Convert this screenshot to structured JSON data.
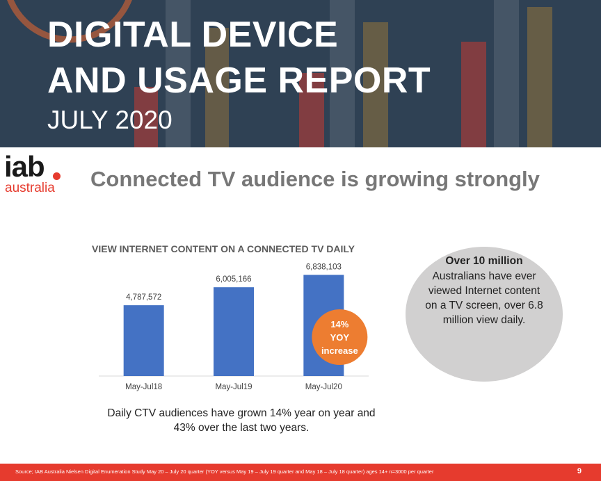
{
  "banner": {
    "title_line1": "DIGITAL DEVICE",
    "title_line2": "AND USAGE REPORT",
    "subtitle": "JULY 2020"
  },
  "logo": {
    "main": "iab",
    "sub": "australia"
  },
  "heading": "Connected TV audience is growing strongly",
  "chart_data": {
    "type": "bar",
    "title": "VIEW INTERNET CONTENT ON A CONNECTED TV DAILY",
    "categories": [
      "May-Jul18",
      "May-Jul19",
      "May-Jul20"
    ],
    "values": [
      4787572,
      6005166,
      6838103
    ],
    "data_labels": [
      "4,787,572",
      "6,005,166",
      "6,838,103"
    ],
    "ylim": [
      0,
      7800000
    ],
    "xlabel": "",
    "ylabel": "",
    "grid": false,
    "bar_color": "#4472c4",
    "annotation": {
      "lines": [
        "14%",
        "YOY",
        "increase"
      ],
      "color": "#ed7d31"
    }
  },
  "callout": {
    "headline": "Over 10 million",
    "body": "Australians have ever viewed Internet content on a TV screen, over 6.8 million view daily."
  },
  "caption": "Daily CTV audiences have grown 14% year on year and 43% over the last two years.",
  "footer": {
    "source": "Source; IAB Australia Nielsen Digital Enumeration Study May 20 – July 20 quarter (YOY versus May 19 – July 19 quarter and May 18 – July 18 quarter) ages 14+ n=3000 per quarter",
    "page": "9"
  },
  "colors": {
    "banner": "#2f4154",
    "accent": "#e63b2e",
    "bar": "#4472c4",
    "badge": "#ed7d31",
    "callout": "#d1d0d0",
    "heading": "#777777"
  }
}
